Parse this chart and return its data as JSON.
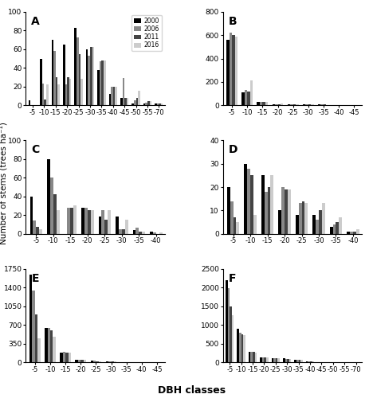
{
  "years": [
    "2000",
    "2006",
    "2011",
    "2016"
  ],
  "colors": [
    "#000000",
    "#888888",
    "#444444",
    "#cccccc"
  ],
  "A": {
    "classes": [
      "-5",
      "-10",
      "-15",
      "-20",
      "-25",
      "-30",
      "-35",
      "-40",
      "-45",
      "-50",
      "-55",
      "-70"
    ],
    "ylim": [
      0,
      100
    ],
    "yticks": [
      0,
      20,
      40,
      60,
      80,
      100
    ],
    "data": {
      "2000": [
        5,
        50,
        70,
        65,
        83,
        60,
        38,
        12,
        8,
        2,
        2,
        2
      ],
      "2006": [
        0,
        23,
        58,
        22,
        73,
        53,
        47,
        20,
        29,
        5,
        3,
        2
      ],
      "2011": [
        0,
        6,
        30,
        30,
        55,
        62,
        48,
        20,
        8,
        8,
        4,
        2
      ],
      "2016": [
        0,
        22,
        22,
        28,
        28,
        62,
        48,
        20,
        8,
        15,
        4,
        2
      ]
    }
  },
  "B": {
    "classes": [
      "-5",
      "-10",
      "-15",
      "-20",
      "-25",
      "-30",
      "-35",
      "-40",
      "-45"
    ],
    "ylim": [
      0,
      800
    ],
    "yticks": [
      0,
      200,
      400,
      600,
      800
    ],
    "data": {
      "2000": [
        560,
        110,
        30,
        10,
        10,
        5,
        5,
        2,
        1
      ],
      "2006": [
        620,
        130,
        30,
        10,
        10,
        5,
        5,
        2,
        1
      ],
      "2011": [
        600,
        115,
        30,
        10,
        10,
        5,
        5,
        2,
        1
      ],
      "2016": [
        590,
        210,
        30,
        15,
        5,
        5,
        2,
        1,
        1
      ]
    }
  },
  "C": {
    "classes": [
      "-5",
      "-10",
      "-15",
      "-20",
      "-25",
      "-30",
      "-35",
      "-40"
    ],
    "ylim": [
      0,
      100
    ],
    "yticks": [
      0,
      20,
      40,
      60,
      80,
      100
    ],
    "data": {
      "2000": [
        40,
        80,
        0,
        28,
        18,
        18,
        4,
        2
      ],
      "2006": [
        14,
        60,
        28,
        28,
        25,
        5,
        6,
        1
      ],
      "2011": [
        7,
        42,
        28,
        25,
        15,
        5,
        2,
        0
      ],
      "2016": [
        5,
        25,
        30,
        25,
        25,
        15,
        2,
        1
      ]
    }
  },
  "D": {
    "classes": [
      "-5",
      "-10",
      "-15",
      "-20",
      "-25",
      "-30",
      "-35",
      "-40"
    ],
    "ylim": [
      0,
      40
    ],
    "yticks": [
      0,
      10,
      20,
      30,
      40
    ],
    "data": {
      "2000": [
        20,
        30,
        25,
        10,
        8,
        8,
        3,
        1
      ],
      "2006": [
        14,
        28,
        18,
        20,
        13,
        6,
        4,
        1
      ],
      "2011": [
        7,
        25,
        20,
        19,
        14,
        10,
        5,
        1
      ],
      "2016": [
        5,
        8,
        25,
        19,
        13,
        13,
        7,
        2
      ]
    }
  },
  "E": {
    "classes": [
      "-5",
      "-10",
      "-15",
      "-20",
      "-25",
      "-30",
      "-35",
      "-40",
      "-45"
    ],
    "ylim": [
      0,
      1750
    ],
    "yticks": [
      0,
      350,
      700,
      1050,
      1400,
      1750
    ],
    "data": {
      "2000": [
        1650,
        650,
        180,
        50,
        25,
        10,
        5,
        2,
        1
      ],
      "2006": [
        1350,
        650,
        200,
        50,
        25,
        10,
        5,
        2,
        1
      ],
      "2011": [
        900,
        600,
        185,
        50,
        20,
        10,
        5,
        2,
        1
      ],
      "2016": [
        450,
        480,
        175,
        50,
        20,
        8,
        5,
        2,
        1
      ]
    }
  },
  "F": {
    "classes": [
      "-5",
      "-10",
      "-15",
      "-20",
      "-25",
      "-30",
      "-35",
      "-40",
      "-45",
      "-50",
      "-55",
      "-70"
    ],
    "ylim": [
      0,
      2500
    ],
    "yticks": [
      0,
      500,
      1000,
      1500,
      2000,
      2500
    ],
    "data": {
      "2000": [
        2200,
        900,
        280,
        130,
        110,
        100,
        70,
        30,
        10,
        5,
        2,
        2
      ],
      "2006": [
        1980,
        800,
        280,
        130,
        110,
        90,
        60,
        25,
        10,
        5,
        2,
        2
      ],
      "2011": [
        1500,
        750,
        270,
        130,
        100,
        90,
        60,
        25,
        10,
        5,
        2,
        2
      ],
      "2016": [
        1250,
        720,
        260,
        130,
        100,
        80,
        60,
        25,
        8,
        5,
        2,
        2
      ]
    }
  },
  "ylabel": "Number of stems (trees ha⁻¹)",
  "xlabel": "DBH classes"
}
